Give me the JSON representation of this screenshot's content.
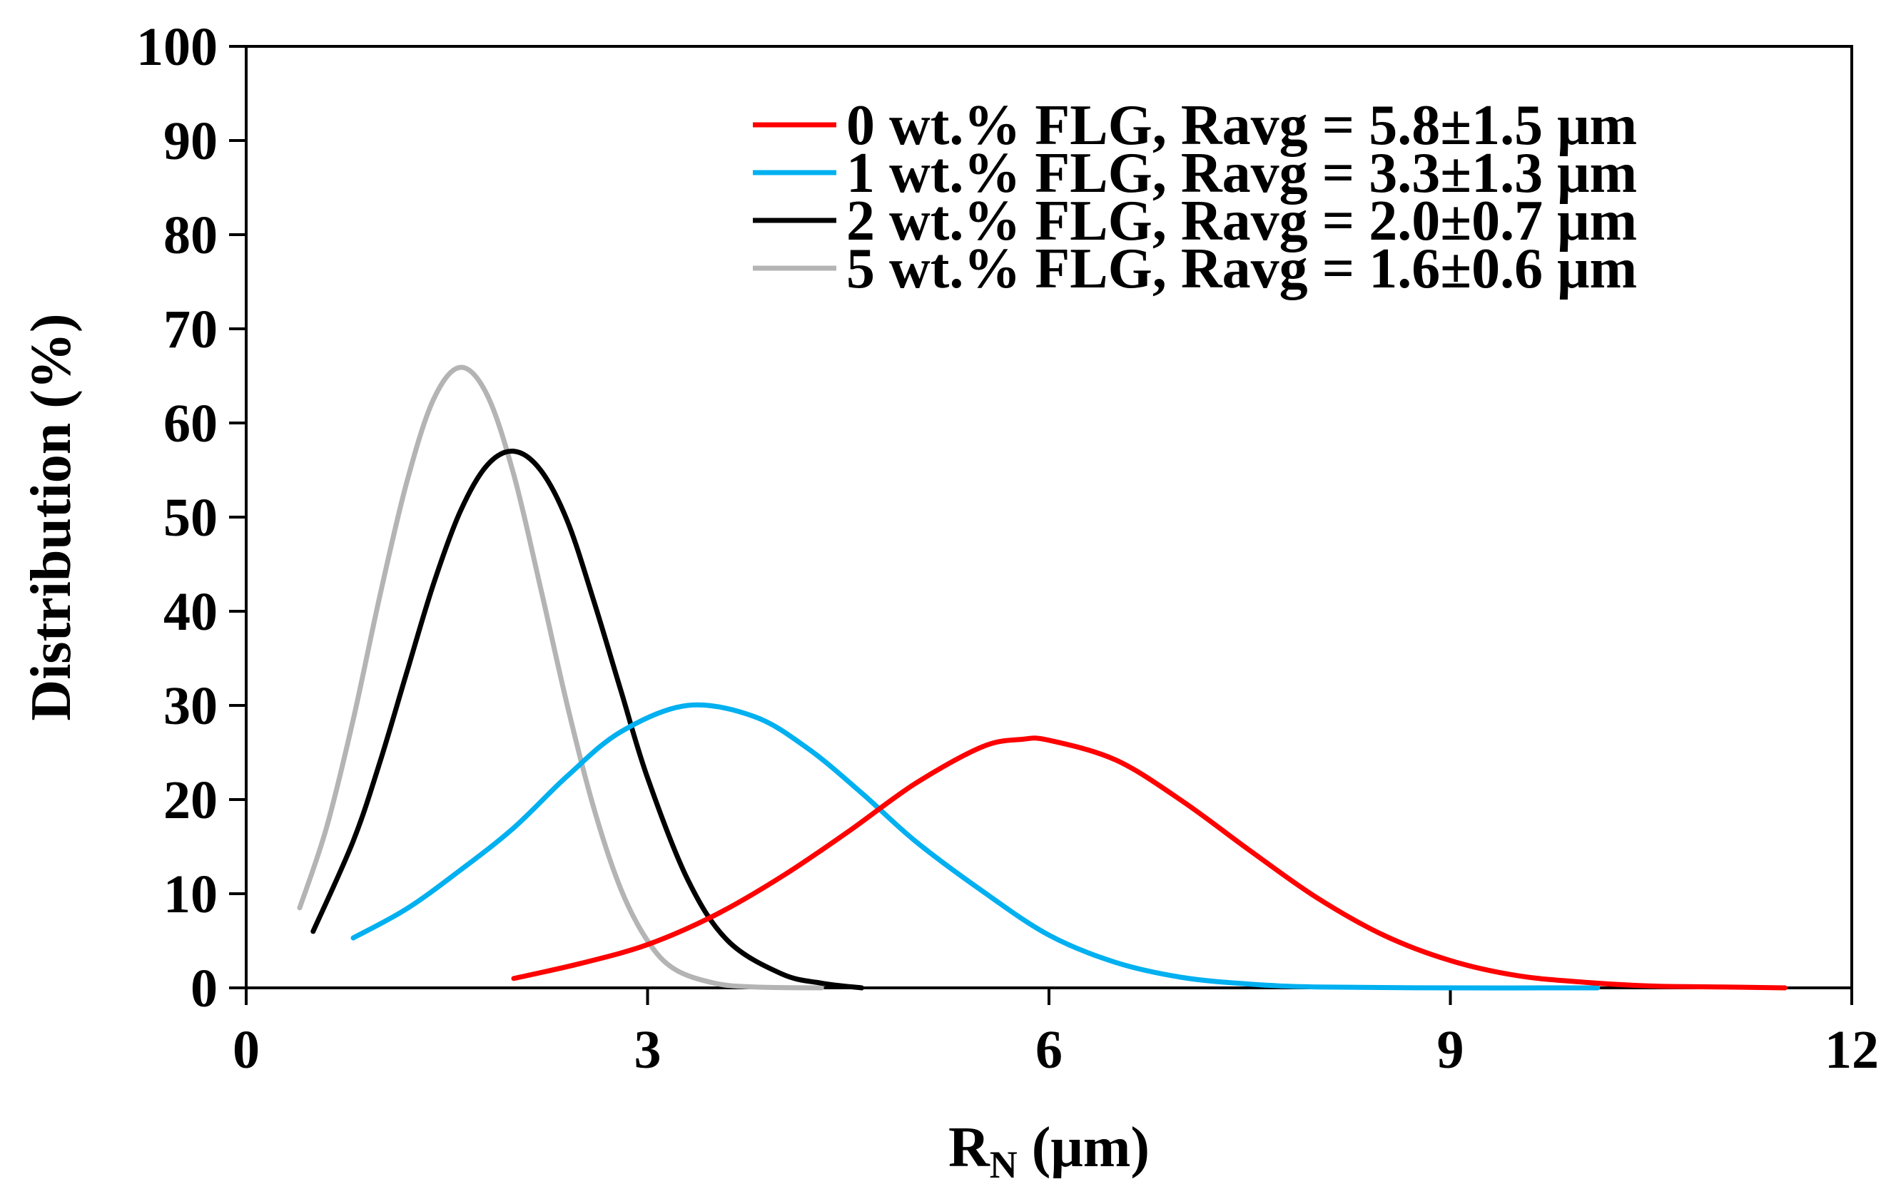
{
  "chart_data": {
    "type": "line",
    "title": "",
    "xlabel_main": "R",
    "xlabel_sub": "N",
    "xlabel_rest": " (μm)",
    "ylabel": "Distribution (%)",
    "xlim": [
      0,
      12
    ],
    "ylim": [
      0,
      100
    ],
    "xticks": [
      0,
      3,
      6,
      9,
      12
    ],
    "yticks": [
      0,
      10,
      20,
      30,
      40,
      50,
      60,
      70,
      80,
      90,
      100
    ],
    "grid": false,
    "legend_position": "top-right",
    "series": [
      {
        "name": "0 wt.% FLG, Ravg = 5.8±1.5 μm",
        "color": "#ff0000",
        "x": [
          2.0,
          2.5,
          3.0,
          3.5,
          4.0,
          4.5,
          5.0,
          5.5,
          5.8,
          6.0,
          6.5,
          7.0,
          7.5,
          8.0,
          8.5,
          9.0,
          9.5,
          10.0,
          10.5,
          11.0,
          11.5
        ],
        "y": [
          1.0,
          2.6,
          4.6,
          7.7,
          11.8,
          16.6,
          21.7,
          25.6,
          26.4,
          26.3,
          24.2,
          19.8,
          14.6,
          9.6,
          5.6,
          2.9,
          1.3,
          0.6,
          0.2,
          0.1,
          0.0
        ]
      },
      {
        "name": "1 wt.% FLG, Ravg = 3.3±1.3 μm",
        "color": "#00b0f0",
        "x": [
          0.8,
          1.2,
          1.6,
          2.0,
          2.4,
          2.8,
          3.3,
          3.8,
          4.2,
          4.6,
          5.0,
          5.5,
          6.0,
          6.5,
          7.0,
          7.5,
          8.0,
          9.0,
          10.1
        ],
        "y": [
          5.3,
          8.4,
          12.5,
          17.0,
          22.5,
          27.2,
          30.0,
          28.8,
          25.4,
          20.7,
          15.6,
          10.3,
          5.6,
          2.7,
          1.1,
          0.4,
          0.1,
          0.0,
          0.0
        ]
      },
      {
        "name": "2 wt.% FLG, Ravg = 2.0±0.7 μm",
        "color": "#000000",
        "x": [
          0.5,
          0.8,
          1.0,
          1.2,
          1.4,
          1.6,
          1.8,
          2.0,
          2.2,
          2.4,
          2.6,
          2.8,
          3.0,
          3.3,
          3.6,
          4.0,
          4.3,
          4.6
        ],
        "y": [
          6.0,
          15.6,
          24.0,
          33.5,
          42.9,
          50.6,
          55.5,
          57.0,
          55.0,
          49.6,
          41.0,
          31.6,
          22.3,
          11.5,
          5.0,
          1.5,
          0.5,
          0.0
        ]
      },
      {
        "name": "5 wt.% FLG, Ravg = 1.6±0.6 μm",
        "color": "#b4b4b4",
        "x": [
          0.4,
          0.6,
          0.8,
          1.0,
          1.2,
          1.4,
          1.6,
          1.8,
          2.0,
          2.2,
          2.4,
          2.6,
          2.8,
          3.0,
          3.2,
          3.5,
          3.8,
          4.3
        ],
        "y": [
          8.5,
          17.0,
          28.5,
          41.7,
          53.7,
          62.5,
          65.9,
          63.0,
          54.5,
          42.5,
          30.0,
          19.0,
          10.5,
          5.0,
          2.0,
          0.5,
          0.1,
          0.0
        ]
      }
    ]
  }
}
